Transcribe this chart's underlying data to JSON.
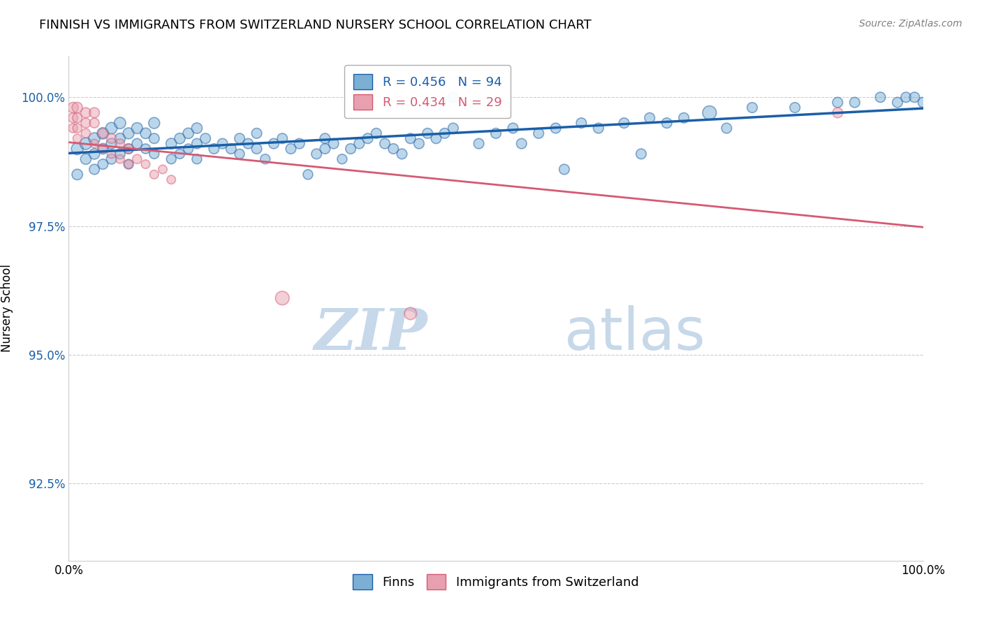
{
  "title": "FINNISH VS IMMIGRANTS FROM SWITZERLAND NURSERY SCHOOL CORRELATION CHART",
  "source": "Source: ZipAtlas.com",
  "ylabel": "Nursery School",
  "xlim": [
    0,
    1
  ],
  "ylim": [
    0.91,
    1.008
  ],
  "yticks": [
    0.925,
    0.95,
    0.975,
    1.0
  ],
  "ytick_labels": [
    "92.5%",
    "95.0%",
    "97.5%",
    "100.0%"
  ],
  "xtick_labels": [
    "0.0%",
    "100.0%"
  ],
  "legend_blue_label": "Finns",
  "legend_pink_label": "Immigrants from Switzerland",
  "R_blue": 0.456,
  "N_blue": 94,
  "R_pink": 0.434,
  "N_pink": 29,
  "blue_color": "#7bafd4",
  "pink_color": "#e8a0b0",
  "line_blue": "#1a5fa8",
  "line_pink": "#d45a72",
  "blue_x": [
    0.01,
    0.01,
    0.02,
    0.02,
    0.03,
    0.03,
    0.03,
    0.04,
    0.04,
    0.04,
    0.05,
    0.05,
    0.05,
    0.06,
    0.06,
    0.06,
    0.07,
    0.07,
    0.07,
    0.08,
    0.08,
    0.09,
    0.09,
    0.1,
    0.1,
    0.1,
    0.12,
    0.12,
    0.13,
    0.13,
    0.14,
    0.14,
    0.15,
    0.15,
    0.15,
    0.16,
    0.17,
    0.18,
    0.19,
    0.2,
    0.2,
    0.21,
    0.22,
    0.22,
    0.23,
    0.24,
    0.25,
    0.26,
    0.27,
    0.28,
    0.29,
    0.3,
    0.3,
    0.31,
    0.32,
    0.33,
    0.34,
    0.35,
    0.36,
    0.37,
    0.38,
    0.39,
    0.4,
    0.41,
    0.42,
    0.43,
    0.44,
    0.45,
    0.48,
    0.5,
    0.52,
    0.55,
    0.57,
    0.6,
    0.62,
    0.65,
    0.68,
    0.7,
    0.72,
    0.75,
    0.8,
    0.85,
    0.9,
    0.92,
    0.95,
    0.97,
    0.98,
    0.99,
    1.0,
    0.45,
    0.53,
    0.58,
    0.67,
    0.77
  ],
  "blue_y": [
    0.99,
    0.985,
    0.991,
    0.988,
    0.992,
    0.989,
    0.986,
    0.993,
    0.99,
    0.987,
    0.994,
    0.991,
    0.988,
    0.995,
    0.992,
    0.989,
    0.993,
    0.99,
    0.987,
    0.994,
    0.991,
    0.993,
    0.99,
    0.995,
    0.992,
    0.989,
    0.991,
    0.988,
    0.992,
    0.989,
    0.993,
    0.99,
    0.994,
    0.991,
    0.988,
    0.992,
    0.99,
    0.991,
    0.99,
    0.992,
    0.989,
    0.991,
    0.993,
    0.99,
    0.988,
    0.991,
    0.992,
    0.99,
    0.991,
    0.985,
    0.989,
    0.992,
    0.99,
    0.991,
    0.988,
    0.99,
    0.991,
    0.992,
    0.993,
    0.991,
    0.99,
    0.989,
    0.992,
    0.991,
    0.993,
    0.992,
    0.993,
    0.994,
    0.991,
    0.993,
    0.994,
    0.993,
    0.994,
    0.995,
    0.994,
    0.995,
    0.996,
    0.995,
    0.996,
    0.997,
    0.998,
    0.998,
    0.999,
    0.999,
    1.0,
    0.999,
    1.0,
    1.0,
    0.999,
    1.0,
    0.991,
    0.986,
    0.989,
    0.994
  ],
  "blue_sizes": [
    150,
    120,
    150,
    120,
    140,
    120,
    110,
    140,
    120,
    110,
    140,
    120,
    110,
    140,
    120,
    110,
    130,
    110,
    100,
    130,
    110,
    120,
    100,
    130,
    110,
    100,
    120,
    100,
    120,
    100,
    120,
    100,
    120,
    110,
    100,
    110,
    110,
    110,
    110,
    110,
    100,
    110,
    110,
    110,
    100,
    110,
    110,
    110,
    110,
    100,
    110,
    110,
    110,
    110,
    100,
    110,
    110,
    110,
    110,
    110,
    110,
    110,
    110,
    110,
    110,
    110,
    110,
    110,
    110,
    110,
    110,
    110,
    110,
    110,
    110,
    110,
    110,
    110,
    110,
    200,
    110,
    110,
    110,
    110,
    110,
    110,
    110,
    110,
    110,
    110,
    110,
    110,
    110,
    110
  ],
  "pink_x": [
    0.005,
    0.005,
    0.005,
    0.01,
    0.01,
    0.01,
    0.01,
    0.02,
    0.02,
    0.02,
    0.03,
    0.03,
    0.03,
    0.04,
    0.04,
    0.05,
    0.05,
    0.06,
    0.06,
    0.07,
    0.07,
    0.08,
    0.09,
    0.1,
    0.11,
    0.12,
    0.25,
    0.4,
    0.9
  ],
  "pink_y": [
    0.998,
    0.996,
    0.994,
    0.998,
    0.996,
    0.994,
    0.992,
    0.997,
    0.995,
    0.993,
    0.997,
    0.995,
    0.991,
    0.993,
    0.99,
    0.992,
    0.989,
    0.991,
    0.988,
    0.99,
    0.987,
    0.988,
    0.987,
    0.985,
    0.986,
    0.984,
    0.961,
    0.958,
    0.997
  ],
  "pink_sizes": [
    120,
    100,
    90,
    120,
    100,
    90,
    80,
    110,
    100,
    90,
    110,
    100,
    80,
    100,
    80,
    100,
    80,
    90,
    80,
    90,
    80,
    90,
    80,
    80,
    80,
    80,
    200,
    160,
    110
  ],
  "watermark_zip": "ZIP",
  "watermark_atlas": "atlas",
  "watermark_color_zip": "#c0d4e8",
  "watermark_color_atlas": "#b0c8e0"
}
